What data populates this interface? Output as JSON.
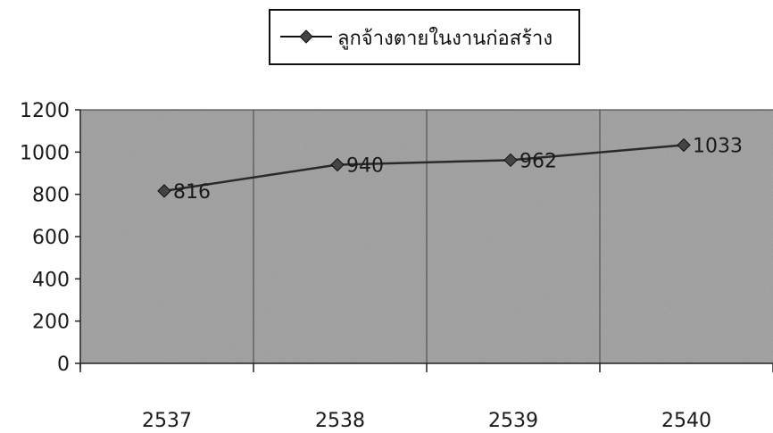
{
  "chart_data": {
    "type": "line",
    "categories": [
      "2537",
      "2538",
      "2539",
      "2540"
    ],
    "series": [
      {
        "name": "ลูกจ้างตายในงานก่อสร้าง",
        "values": [
          816,
          940,
          962,
          1033
        ]
      }
    ],
    "data_labels": [
      "816",
      "940",
      "962",
      "1033"
    ],
    "y_ticks": [
      "0",
      "200",
      "400",
      "600",
      "800",
      "1000",
      "1200"
    ],
    "ylim": [
      0,
      1200
    ],
    "legend_position": "top",
    "grid": "vertical",
    "colors": {
      "plot_background": "#9e9e9e",
      "line": "#2a2a2a",
      "marker": "#444444",
      "text": "#1a1a1a"
    }
  }
}
